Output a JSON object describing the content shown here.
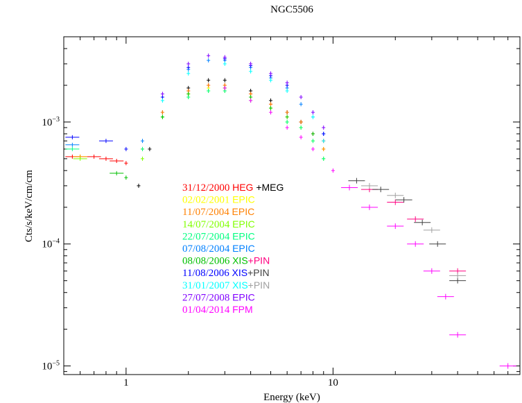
{
  "chart_data": {
    "type": "scatter",
    "title": "NGC5506",
    "xlabel": "Energy (keV)",
    "ylabel": "Cts/s/keV/cm/cm",
    "xscale": "log",
    "yscale": "log",
    "xlim": [
      0.5,
      80
    ],
    "ylim": [
      8.5e-06,
      0.005
    ],
    "xticks": [
      {
        "value": 1,
        "label": "1"
      },
      {
        "value": 10,
        "label": "10"
      }
    ],
    "yticks": [
      {
        "value": 1e-05,
        "base": "10",
        "exp": "−5"
      },
      {
        "value": 0.0001,
        "base": "10",
        "exp": "−4"
      },
      {
        "value": 0.001,
        "base": "10",
        "exp": "−3"
      }
    ],
    "grid": false,
    "legend_position": "center",
    "legend": [
      {
        "date": "31/12/2000",
        "date_color": "#ff0000",
        "parts": [
          {
            "text": "HEG",
            "color": "#ff0000"
          },
          {
            "text": " +MEG",
            "color": "#000000"
          }
        ]
      },
      {
        "date": "02/02/2001",
        "date_color": "#ffff00",
        "parts": [
          {
            "text": "EPIC",
            "color": "#ffff00"
          }
        ]
      },
      {
        "date": "11/07/2004",
        "date_color": "#ff8000",
        "parts": [
          {
            "text": "EPIC",
            "color": "#ff8000"
          }
        ]
      },
      {
        "date": "14/07/2004",
        "date_color": "#80ff00",
        "parts": [
          {
            "text": "EPIC",
            "color": "#80ff00"
          }
        ]
      },
      {
        "date": "22/07/2004",
        "date_color": "#00ff80",
        "parts": [
          {
            "text": "EPIC",
            "color": "#00ff80"
          }
        ]
      },
      {
        "date": "07/08/2004",
        "date_color": "#0080ff",
        "parts": [
          {
            "text": "EPIC",
            "color": "#0080ff"
          }
        ]
      },
      {
        "date": "08/08/2006",
        "date_color": "#00c000",
        "parts": [
          {
            "text": "XIS",
            "color": "#00c000"
          },
          {
            "text": "+PIN",
            "color": "#ff0080"
          }
        ]
      },
      {
        "date": "11/08/2006",
        "date_color": "#0000ff",
        "parts": [
          {
            "text": "XIS",
            "color": "#0000ff"
          },
          {
            "text": "+PIN",
            "color": "#404040"
          }
        ]
      },
      {
        "date": "31/01/2007",
        "date_color": "#00ffff",
        "parts": [
          {
            "text": "XIS",
            "color": "#00ffff"
          },
          {
            "text": "+PIN",
            "color": "#a0a0a0"
          }
        ]
      },
      {
        "date": "27/07/2008",
        "date_color": "#8000ff",
        "parts": [
          {
            "text": "EPIC",
            "color": "#8000ff"
          }
        ]
      },
      {
        "date": "01/04/2014",
        "date_color": "#ff00ff",
        "parts": [
          {
            "text": "FPM",
            "color": "#ff00ff"
          }
        ]
      }
    ],
    "series": [
      {
        "color": "#ff0000",
        "group": "HEG",
        "points": [
          [
            0.55,
            0.00052
          ],
          [
            0.7,
            0.00052
          ],
          [
            0.8,
            0.0005
          ],
          [
            0.9,
            0.00048
          ],
          [
            1.0,
            0.00046
          ],
          [
            1.2,
            0.0006
          ],
          [
            1.5,
            0.0012
          ],
          [
            2.0,
            0.0018
          ],
          [
            2.5,
            0.002
          ],
          [
            3.0,
            0.002
          ],
          [
            4.0,
            0.0017
          ],
          [
            5.0,
            0.0014
          ],
          [
            6.0,
            0.0012
          ],
          [
            7.0,
            0.001
          ],
          [
            8.0,
            0.0008
          ],
          [
            9.0,
            0.0007
          ]
        ]
      },
      {
        "color": "#000000",
        "group": "MEG",
        "points": [
          [
            1.15,
            0.0003
          ],
          [
            1.3,
            0.0006
          ],
          [
            1.5,
            0.0012
          ],
          [
            2.0,
            0.0019
          ],
          [
            2.5,
            0.0022
          ],
          [
            3.0,
            0.0022
          ],
          [
            4.0,
            0.0018
          ],
          [
            5.0,
            0.0015
          ],
          [
            6.0,
            0.0012
          ],
          [
            7.0,
            0.001
          ],
          [
            8.0,
            0.0008
          ]
        ]
      },
      {
        "color": "#ffff00",
        "group": "EPIC",
        "points": [
          [
            0.6,
            0.00052
          ],
          [
            1.2,
            0.0006
          ],
          [
            1.5,
            0.0011
          ],
          [
            2.0,
            0.0017
          ],
          [
            2.5,
            0.0019
          ],
          [
            3.0,
            0.0019
          ],
          [
            4.0,
            0.0016
          ],
          [
            5.0,
            0.0013
          ],
          [
            6.0,
            0.0011
          ],
          [
            7.0,
            0.0009
          ],
          [
            8.0,
            0.0007
          ],
          [
            9.0,
            0.0006
          ]
        ]
      },
      {
        "color": "#ff8000",
        "group": "EPIC",
        "points": [
          [
            0.6,
            0.00052
          ],
          [
            1.2,
            0.0006
          ],
          [
            1.5,
            0.0012
          ],
          [
            2.0,
            0.0018
          ],
          [
            2.5,
            0.002
          ],
          [
            3.0,
            0.002
          ],
          [
            4.0,
            0.0017
          ],
          [
            5.0,
            0.0014
          ],
          [
            6.0,
            0.0012
          ],
          [
            7.0,
            0.001
          ],
          [
            8.0,
            0.0008
          ],
          [
            9.0,
            0.0006
          ]
        ]
      },
      {
        "color": "#80ff00",
        "group": "EPIC",
        "points": [
          [
            0.6,
            0.0005
          ],
          [
            1.2,
            0.0005
          ],
          [
            1.5,
            0.0011
          ],
          [
            2.0,
            0.0016
          ],
          [
            2.5,
            0.0018
          ],
          [
            3.0,
            0.0018
          ],
          [
            4.0,
            0.0015
          ],
          [
            5.0,
            0.0013
          ],
          [
            6.0,
            0.001
          ],
          [
            7.0,
            0.0009
          ],
          [
            8.0,
            0.0007
          ],
          [
            9.0,
            0.0005
          ]
        ]
      },
      {
        "color": "#00ff80",
        "group": "EPIC",
        "points": [
          [
            0.55,
            0.0006
          ],
          [
            1.2,
            0.0006
          ],
          [
            1.5,
            0.0011
          ],
          [
            2.0,
            0.0016
          ],
          [
            2.5,
            0.0018
          ],
          [
            3.0,
            0.0018
          ],
          [
            4.0,
            0.0015
          ],
          [
            5.0,
            0.0012
          ],
          [
            6.0,
            0.001
          ],
          [
            7.0,
            0.0009
          ],
          [
            8.0,
            0.0007
          ],
          [
            9.0,
            0.0005
          ]
        ]
      },
      {
        "color": "#0080ff",
        "group": "EPIC",
        "points": [
          [
            0.55,
            0.00065
          ],
          [
            1.2,
            0.0007
          ],
          [
            1.5,
            0.0016
          ],
          [
            2.0,
            0.0027
          ],
          [
            2.5,
            0.0032
          ],
          [
            3.0,
            0.0032
          ],
          [
            4.0,
            0.0028
          ],
          [
            5.0,
            0.0023
          ],
          [
            6.0,
            0.0019
          ],
          [
            7.0,
            0.0014
          ],
          [
            8.0,
            0.0011
          ],
          [
            9.0,
            0.0008
          ]
        ]
      },
      {
        "color": "#00c000",
        "group": "XIS",
        "points": [
          [
            0.9,
            0.00038
          ],
          [
            1.0,
            0.00035
          ],
          [
            1.5,
            0.0011
          ],
          [
            2.0,
            0.0017
          ],
          [
            3.0,
            0.0019
          ],
          [
            4.0,
            0.0016
          ],
          [
            5.0,
            0.0013
          ],
          [
            6.0,
            0.0011
          ],
          [
            8.0,
            0.0008
          ]
        ]
      },
      {
        "color": "#ff0080",
        "group": "PIN",
        "points": [
          [
            15,
            0.00028
          ],
          [
            20,
            0.00022
          ],
          [
            25,
            0.00016
          ],
          [
            40,
            6e-05
          ]
        ]
      },
      {
        "color": "#0000ff",
        "group": "XIS",
        "points": [
          [
            0.55,
            0.00075
          ],
          [
            0.8,
            0.0007
          ],
          [
            1.0,
            0.0006
          ],
          [
            1.5,
            0.0016
          ],
          [
            2.0,
            0.0028
          ],
          [
            3.0,
            0.0033
          ],
          [
            4.0,
            0.0029
          ],
          [
            5.0,
            0.0024
          ],
          [
            6.0,
            0.002
          ],
          [
            8.0,
            0.0012
          ],
          [
            9.0,
            0.0008
          ]
        ]
      },
      {
        "color": "#404040",
        "group": "PIN",
        "points": [
          [
            13,
            0.00033
          ],
          [
            17,
            0.00028
          ],
          [
            22,
            0.00023
          ],
          [
            27,
            0.00015
          ],
          [
            32,
            0.0001
          ],
          [
            40,
            5e-05
          ]
        ]
      },
      {
        "color": "#00ffff",
        "group": "XIS",
        "points": [
          [
            1.5,
            0.0015
          ],
          [
            2.0,
            0.0025
          ],
          [
            3.0,
            0.003
          ],
          [
            4.0,
            0.0026
          ],
          [
            5.0,
            0.0022
          ],
          [
            6.0,
            0.0018
          ],
          [
            8.0,
            0.0011
          ],
          [
            9.0,
            0.0007
          ]
        ]
      },
      {
        "color": "#a0a0a0",
        "group": "PIN",
        "points": [
          [
            15,
            0.0003
          ],
          [
            20,
            0.00025
          ],
          [
            30,
            0.00013
          ],
          [
            40,
            5.5e-05
          ]
        ]
      },
      {
        "color": "#8000ff",
        "group": "EPIC",
        "points": [
          [
            1.5,
            0.0017
          ],
          [
            2.0,
            0.003
          ],
          [
            2.5,
            0.0035
          ],
          [
            3.0,
            0.0034
          ],
          [
            4.0,
            0.003
          ],
          [
            5.0,
            0.0025
          ],
          [
            6.0,
            0.0021
          ],
          [
            7.0,
            0.0016
          ],
          [
            8.0,
            0.0012
          ],
          [
            9.0,
            0.0009
          ]
        ]
      },
      {
        "color": "#ff00ff",
        "group": "FPM",
        "points": [
          [
            3.0,
            0.0019
          ],
          [
            4.0,
            0.0015
          ],
          [
            5.0,
            0.0012
          ],
          [
            6.0,
            0.0009
          ],
          [
            7.0,
            0.00075
          ],
          [
            8.0,
            0.0006
          ],
          [
            10,
            0.0004
          ],
          [
            12,
            0.00029
          ],
          [
            15,
            0.0002
          ],
          [
            20,
            0.00014
          ],
          [
            25,
            0.0001
          ],
          [
            30,
            6e-05
          ],
          [
            35,
            3.7e-05
          ],
          [
            40,
            1.8e-05
          ],
          [
            70,
            1e-05
          ]
        ]
      }
    ]
  }
}
